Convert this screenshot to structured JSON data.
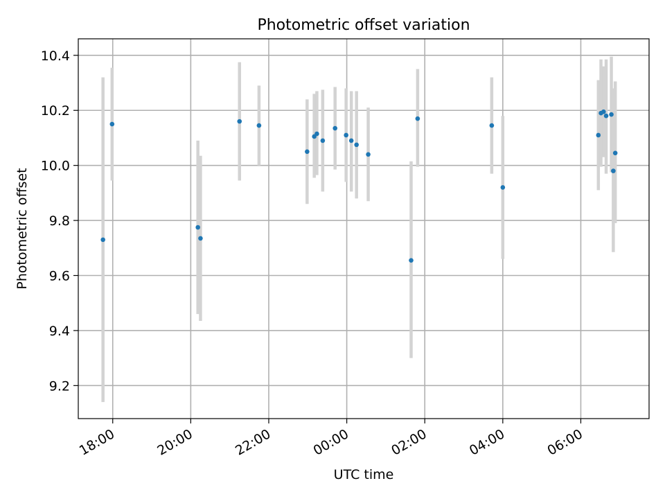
{
  "chart_data": {
    "type": "scatter",
    "title": "Photometric offset variation",
    "xlabel": "UTC time",
    "ylabel": "Photometric offset",
    "xlim": [
      "17:07",
      "07:45"
    ],
    "ylim": [
      9.08,
      10.46
    ],
    "grid": true,
    "xticks": [
      {
        "time": "18:00",
        "label": "18:00"
      },
      {
        "time": "20:00",
        "label": "20:00"
      },
      {
        "time": "22:00",
        "label": "22:00"
      },
      {
        "time": "00:00",
        "label": "00:00"
      },
      {
        "time": "02:00",
        "label": "02:00"
      },
      {
        "time": "04:00",
        "label": "04:00"
      },
      {
        "time": "06:00",
        "label": "06:00"
      }
    ],
    "yticks": [
      9.2,
      9.4,
      9.6,
      9.8,
      10.0,
      10.2,
      10.4
    ],
    "ytick_labels": [
      "9.2",
      "9.4",
      "9.6",
      "9.8",
      "10.0",
      "10.2",
      "10.4"
    ],
    "colors": {
      "point": "#1f77b4",
      "errorbar": "#d3d3d3",
      "grid": "#b0b0b0"
    },
    "points": [
      {
        "time": "17:45",
        "y": 9.73,
        "err_low": 9.14,
        "err_high": 10.32
      },
      {
        "time": "17:59",
        "y": 10.15,
        "err_low": 9.945,
        "err_high": 10.355
      },
      {
        "time": "20:11",
        "y": 9.775,
        "err_low": 9.46,
        "err_high": 10.09
      },
      {
        "time": "20:15",
        "y": 9.735,
        "err_low": 9.435,
        "err_high": 10.035
      },
      {
        "time": "21:15",
        "y": 10.16,
        "err_low": 9.945,
        "err_high": 10.375
      },
      {
        "time": "21:45",
        "y": 10.145,
        "err_low": 10.0,
        "err_high": 10.29
      },
      {
        "time": "22:59",
        "y": 10.05,
        "err_low": 9.86,
        "err_high": 10.24
      },
      {
        "time": "23:10",
        "y": 10.105,
        "err_low": 9.955,
        "err_high": 10.26
      },
      {
        "time": "23:14",
        "y": 10.115,
        "err_low": 9.965,
        "err_high": 10.27
      },
      {
        "time": "23:23",
        "y": 10.09,
        "err_low": 9.905,
        "err_high": 10.275
      },
      {
        "time": "23:42",
        "y": 10.135,
        "err_low": 9.985,
        "err_high": 10.285
      },
      {
        "time": "23:59",
        "y": 10.11,
        "err_low": 9.94,
        "err_high": 10.28
      },
      {
        "time": "00:07",
        "y": 10.09,
        "err_low": 9.905,
        "err_high": 10.27
      },
      {
        "time": "00:15",
        "y": 10.075,
        "err_low": 9.88,
        "err_high": 10.27
      },
      {
        "time": "00:33",
        "y": 10.04,
        "err_low": 9.87,
        "err_high": 10.21
      },
      {
        "time": "01:39",
        "y": 9.655,
        "err_low": 9.3,
        "err_high": 10.015
      },
      {
        "time": "01:49",
        "y": 10.17,
        "err_low": 9.995,
        "err_high": 10.35
      },
      {
        "time": "03:43",
        "y": 10.145,
        "err_low": 9.97,
        "err_high": 10.32
      },
      {
        "time": "04:00",
        "y": 9.92,
        "err_low": 9.66,
        "err_high": 10.18
      },
      {
        "time": "06:27",
        "y": 10.11,
        "err_low": 9.91,
        "err_high": 10.31
      },
      {
        "time": "06:31",
        "y": 10.19,
        "err_low": 9.995,
        "err_high": 10.385
      },
      {
        "time": "06:35",
        "y": 10.195,
        "err_low": 10.03,
        "err_high": 10.36
      },
      {
        "time": "06:39",
        "y": 10.18,
        "err_low": 9.97,
        "err_high": 10.385
      },
      {
        "time": "06:47",
        "y": 10.185,
        "err_low": 9.975,
        "err_high": 10.395
      },
      {
        "time": "06:50",
        "y": 9.98,
        "err_low": 9.685,
        "err_high": 10.28
      },
      {
        "time": "06:53",
        "y": 10.045,
        "err_low": 9.79,
        "err_high": 10.305
      }
    ]
  }
}
